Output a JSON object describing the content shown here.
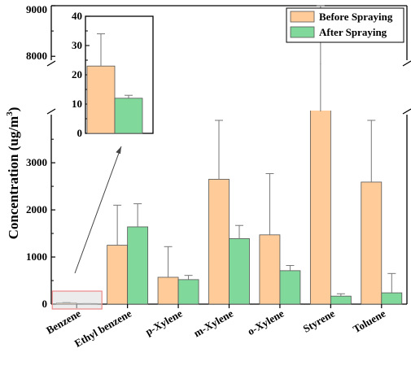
{
  "chart_data": {
    "type": "bar",
    "ylabel": "Concentration (ug/m",
    "ylabel_sup": "3",
    "ylabel_close": ")",
    "categories": [
      "Benzene",
      "Ethyl benzene",
      "p-Xylene",
      "m-Xylene",
      "o-Xylene",
      "Styrene",
      "Toluene"
    ],
    "series": [
      {
        "name": "Before Spraying",
        "color": "#FFCC99",
        "values": [
          23,
          1250,
          570,
          2650,
          1470,
          7700,
          2590
        ],
        "errors": [
          11,
          850,
          650,
          1530,
          1300,
          1550,
          1680
        ]
      },
      {
        "name": "After Spraying",
        "color": "#80D99A",
        "values": [
          12,
          1640,
          520,
          1390,
          710,
          170,
          240
        ],
        "errors": [
          1,
          490,
          90,
          280,
          110,
          50,
          410
        ]
      }
    ],
    "y_axis": {
      "lower_range": [
        0,
        3900
      ],
      "lower_ticks": [
        "0",
        "1000",
        "2000",
        "3000"
      ],
      "upper_range": [
        7650,
        9000
      ],
      "upper_ticks": [
        "8000",
        "9000"
      ],
      "break": "double-slash"
    },
    "legend_position": "top-right",
    "inset": {
      "category": "Benzene",
      "ylim": [
        0,
        40
      ],
      "ticks": [
        "0",
        "10",
        "20",
        "30",
        "40"
      ]
    }
  }
}
